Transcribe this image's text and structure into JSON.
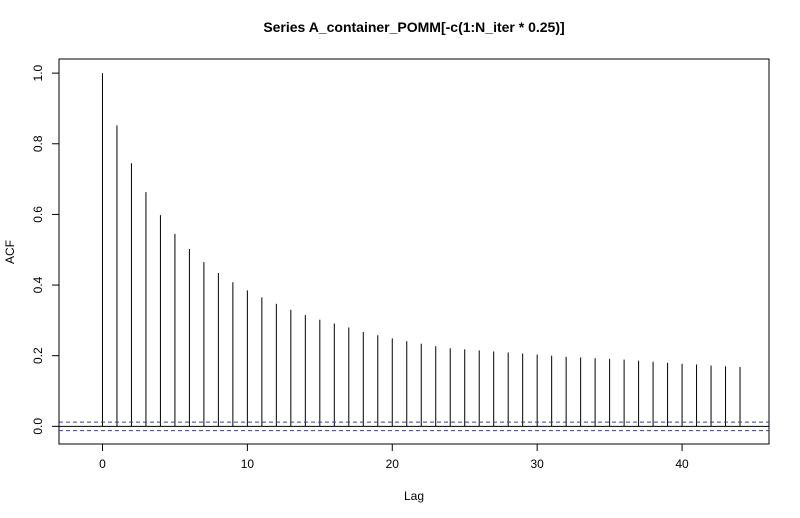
{
  "chart_data": {
    "type": "bar",
    "title": "Series  A_container_POMM[-c(1:N_iter * 0.25)]",
    "xlabel": "Lag",
    "ylabel": "ACF",
    "xlim": [
      -3,
      46
    ],
    "ylim": [
      -0.05,
      1.04
    ],
    "xticks": [
      0,
      10,
      20,
      30,
      40
    ],
    "xtick_labels": [
      "0",
      "10",
      "20",
      "30",
      "40"
    ],
    "yticks": [
      0.0,
      0.2,
      0.4,
      0.6,
      0.8,
      1.0
    ],
    "ytick_labels": [
      "0.0",
      "0.2",
      "0.4",
      "0.6",
      "0.8",
      "1.0"
    ],
    "lags": [
      0,
      1,
      2,
      3,
      4,
      5,
      6,
      7,
      8,
      9,
      10,
      11,
      12,
      13,
      14,
      15,
      16,
      17,
      18,
      19,
      20,
      21,
      22,
      23,
      24,
      25,
      26,
      27,
      28,
      29,
      30,
      31,
      32,
      33,
      34,
      35,
      36,
      37,
      38,
      39,
      40,
      41,
      42,
      43,
      44
    ],
    "acf": [
      1.0,
      0.852,
      0.745,
      0.663,
      0.598,
      0.545,
      0.502,
      0.465,
      0.434,
      0.408,
      0.385,
      0.365,
      0.347,
      0.33,
      0.315,
      0.302,
      0.291,
      0.28,
      0.267,
      0.258,
      0.249,
      0.241,
      0.234,
      0.227,
      0.221,
      0.218,
      0.215,
      0.212,
      0.209,
      0.206,
      0.203,
      0.2,
      0.197,
      0.195,
      0.193,
      0.191,
      0.189,
      0.186,
      0.183,
      0.18,
      0.177,
      0.175,
      0.172,
      0.17,
      0.168
    ],
    "confidence_bound": 0.012,
    "colors": {
      "bars": "#000000",
      "ci": "#3a3ab8",
      "zero_line": "#000000"
    }
  }
}
